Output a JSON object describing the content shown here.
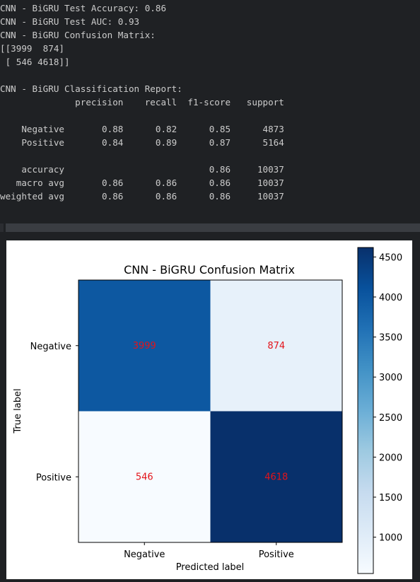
{
  "console": {
    "lines": [
      "CNN - BiGRU Test Accuracy: 0.86",
      "CNN - BiGRU Test AUC: 0.93",
      "CNN - BiGRU Confusion Matrix:",
      "[[3999  874]",
      " [ 546 4618]]",
      "",
      "CNN - BiGRU Classification Report:",
      "              precision    recall  f1-score   support",
      "",
      "    Negative       0.88      0.82      0.85      4873",
      "    Positive       0.84      0.89      0.87      5164",
      "",
      "    accuracy                           0.86     10037",
      "   macro avg       0.86      0.86      0.86     10037",
      "weighted avg       0.86      0.86      0.86     10037"
    ]
  },
  "colors": {
    "console_bg": "#1f2124",
    "console_text": "#cccccc",
    "cell_text": "#e3131a",
    "colormap": "Blues"
  },
  "chart_data": {
    "type": "heatmap",
    "title": "CNN - BiGRU Confusion Matrix",
    "xlabel": "Predicted label",
    "ylabel": "True label",
    "x_categories": [
      "Negative",
      "Positive"
    ],
    "y_categories": [
      "Negative",
      "Positive"
    ],
    "values": [
      [
        3999,
        874
      ],
      [
        546,
        4618
      ]
    ],
    "cell_labels": [
      [
        "3999",
        "874"
      ],
      [
        "546",
        "4618"
      ]
    ],
    "colorbar": {
      "range": [
        546,
        4618
      ],
      "ticks": [
        1000,
        1500,
        2000,
        2500,
        3000,
        3500,
        4000,
        4500
      ],
      "tick_labels": [
        "1000",
        "1500",
        "2000",
        "2500",
        "3000",
        "3500",
        "4000",
        "4500"
      ]
    }
  }
}
